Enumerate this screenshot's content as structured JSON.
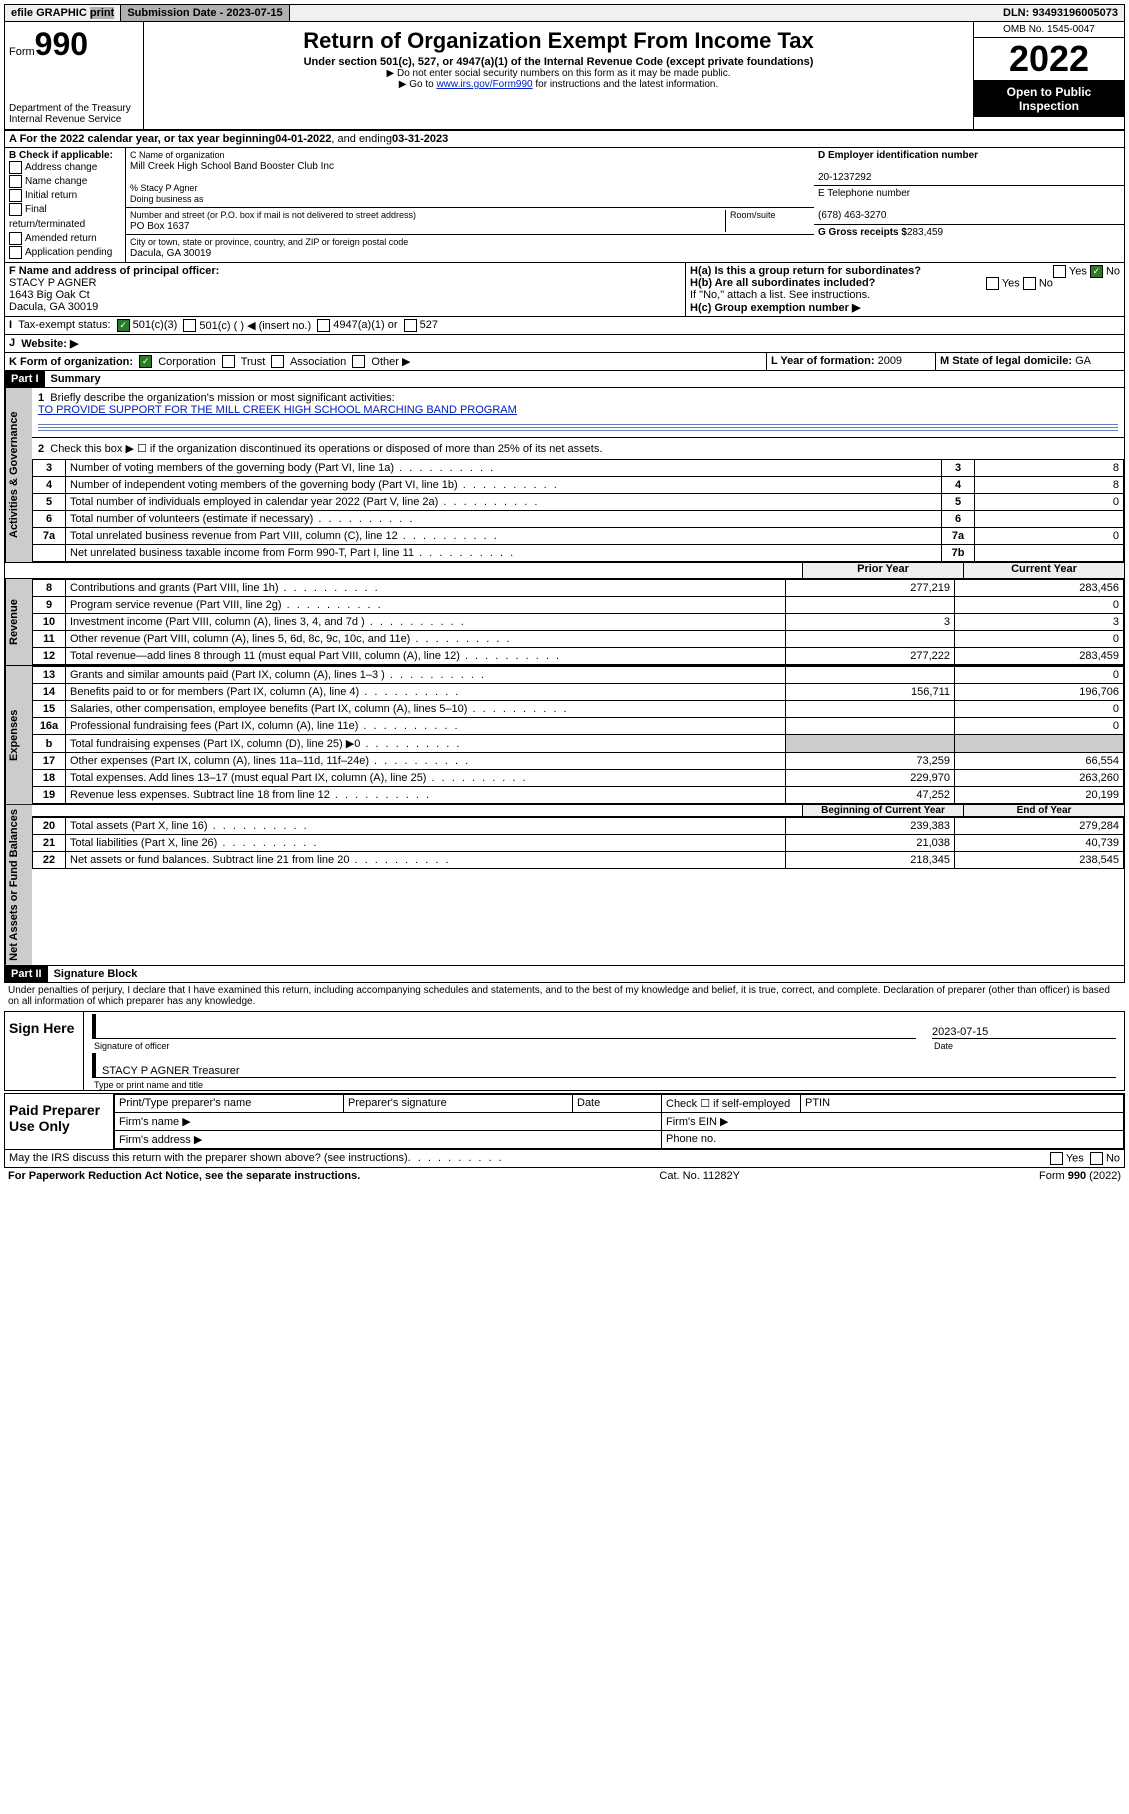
{
  "topbar": {
    "efile": "efile GRAPHIC",
    "print": "print",
    "sub_label": "Submission Date -",
    "sub_date": "2023-07-15",
    "dln_label": "DLN:",
    "dln": "93493196005073"
  },
  "header": {
    "form_prefix": "Form",
    "form_no": "990",
    "dept": "Department of the Treasury",
    "irs": "Internal Revenue Service",
    "title": "Return of Organization Exempt From Income Tax",
    "subtitle": "Under section 501(c), 527, or 4947(a)(1) of the Internal Revenue Code (except private foundations)",
    "note1": "▶ Do not enter social security numbers on this form as it may be made public.",
    "note2_pre": "▶ Go to ",
    "note2_link": "www.irs.gov/Form990",
    "note2_post": " for instructions and the latest information.",
    "omb": "OMB No. 1545-0047",
    "year": "2022",
    "open": "Open to Public Inspection"
  },
  "period": {
    "line": "A For the 2022 calendar year, or tax year beginning ",
    "start": "04-01-2022",
    "mid": " , and ending ",
    "end": "03-31-2023"
  },
  "secB": {
    "hdr": "B Check if applicable:",
    "opts": [
      "Address change",
      "Name change",
      "Initial return",
      "Final return/terminated",
      "Amended return",
      "Application pending"
    ]
  },
  "secC": {
    "name_label": "C Name of organization",
    "name": "Mill Creek High School Band Booster Club Inc",
    "care_label": "% Stacy P Agner",
    "dba_label": "Doing business as",
    "addr_label": "Number and street (or P.O. box if mail is not delivered to street address)",
    "room_label": "Room/suite",
    "addr": "PO Box 1637",
    "city_label": "City or town, state or province, country, and ZIP or foreign postal code",
    "city": "Dacula, GA  30019"
  },
  "secD": {
    "ein_label": "D Employer identification number",
    "ein": "20-1237292",
    "phone_label": "E Telephone number",
    "phone": "(678) 463-3270",
    "gross_label": "G Gross receipts $",
    "gross": "283,459"
  },
  "secF": {
    "label": "F Name and address of principal officer:",
    "name": "STACY P AGNER",
    "addr1": "1643 Big Oak Ct",
    "addr2": "Dacula, GA  30019"
  },
  "secH": {
    "a": "H(a)  Is this a group return for subordinates?",
    "b": "H(b)  Are all subordinates included?",
    "note": "If \"No,\" attach a list. See instructions.",
    "c": "H(c)  Group exemption number ▶",
    "yes": "Yes",
    "no": "No"
  },
  "secI": {
    "label": "Tax-exempt status:",
    "opts": [
      "501(c)(3)",
      "501(c) ( ) ◀ (insert no.)",
      "4947(a)(1) or",
      "527"
    ]
  },
  "secJ": {
    "label": "Website: ▶"
  },
  "secK": {
    "label": "K Form of organization:",
    "opts": [
      "Corporation",
      "Trust",
      "Association",
      "Other ▶"
    ]
  },
  "secL": {
    "label": "L Year of formation:",
    "val": "2009"
  },
  "secM": {
    "label": "M State of legal domicile:",
    "val": "GA"
  },
  "part1": {
    "hdr": "Part I",
    "title": "Summary",
    "l1_label": "Briefly describe the organization's mission or most significant activities:",
    "l1_text": "TO PROVIDE SUPPORT FOR THE MILL CREEK HIGH SCHOOL MARCHING BAND PROGRAM",
    "l2": "Check this box ▶ ☐ if the organization discontinued its operations or disposed of more than 25% of its net assets.",
    "rows_gov": [
      {
        "n": "3",
        "t": "Number of voting members of the governing body (Part VI, line 1a)",
        "r": "3",
        "v": "8"
      },
      {
        "n": "4",
        "t": "Number of independent voting members of the governing body (Part VI, line 1b)",
        "r": "4",
        "v": "8"
      },
      {
        "n": "5",
        "t": "Total number of individuals employed in calendar year 2022 (Part V, line 2a)",
        "r": "5",
        "v": "0"
      },
      {
        "n": "6",
        "t": "Total number of volunteers (estimate if necessary)",
        "r": "6",
        "v": ""
      },
      {
        "n": "7a",
        "t": "Total unrelated business revenue from Part VIII, column (C), line 12",
        "r": "7a",
        "v": "0"
      },
      {
        "n": "",
        "t": "Net unrelated business taxable income from Form 990-T, Part I, line 11",
        "r": "7b",
        "v": ""
      }
    ],
    "col_prior": "Prior Year",
    "col_curr": "Current Year",
    "rows_rev": [
      {
        "n": "8",
        "t": "Contributions and grants (Part VIII, line 1h)",
        "p": "277,219",
        "c": "283,456"
      },
      {
        "n": "9",
        "t": "Program service revenue (Part VIII, line 2g)",
        "p": "",
        "c": "0"
      },
      {
        "n": "10",
        "t": "Investment income (Part VIII, column (A), lines 3, 4, and 7d )",
        "p": "3",
        "c": "3"
      },
      {
        "n": "11",
        "t": "Other revenue (Part VIII, column (A), lines 5, 6d, 8c, 9c, 10c, and 11e)",
        "p": "",
        "c": "0"
      },
      {
        "n": "12",
        "t": "Total revenue—add lines 8 through 11 (must equal Part VIII, column (A), line 12)",
        "p": "277,222",
        "c": "283,459"
      }
    ],
    "rows_exp": [
      {
        "n": "13",
        "t": "Grants and similar amounts paid (Part IX, column (A), lines 1–3 )",
        "p": "",
        "c": "0"
      },
      {
        "n": "14",
        "t": "Benefits paid to or for members (Part IX, column (A), line 4)",
        "p": "156,711",
        "c": "196,706"
      },
      {
        "n": "15",
        "t": "Salaries, other compensation, employee benefits (Part IX, column (A), lines 5–10)",
        "p": "",
        "c": "0"
      },
      {
        "n": "16a",
        "t": "Professional fundraising fees (Part IX, column (A), line 11e)",
        "p": "",
        "c": "0"
      },
      {
        "n": "b",
        "t": "Total fundraising expenses (Part IX, column (D), line 25) ▶0",
        "p": "shade",
        "c": "shade"
      },
      {
        "n": "17",
        "t": "Other expenses (Part IX, column (A), lines 11a–11d, 11f–24e)",
        "p": "73,259",
        "c": "66,554"
      },
      {
        "n": "18",
        "t": "Total expenses. Add lines 13–17 (must equal Part IX, column (A), line 25)",
        "p": "229,970",
        "c": "263,260"
      },
      {
        "n": "19",
        "t": "Revenue less expenses. Subtract line 18 from line 12",
        "p": "47,252",
        "c": "20,199"
      }
    ],
    "col_beg": "Beginning of Current Year",
    "col_end": "End of Year",
    "rows_na": [
      {
        "n": "20",
        "t": "Total assets (Part X, line 16)",
        "p": "239,383",
        "c": "279,284"
      },
      {
        "n": "21",
        "t": "Total liabilities (Part X, line 26)",
        "p": "21,038",
        "c": "40,739"
      },
      {
        "n": "22",
        "t": "Net assets or fund balances. Subtract line 21 from line 20",
        "p": "218,345",
        "c": "238,545"
      }
    ]
  },
  "part2": {
    "hdr": "Part II",
    "title": "Signature Block",
    "decl": "Under penalties of perjury, I declare that I have examined this return, including accompanying schedules and statements, and to the best of my knowledge and belief, it is true, correct, and complete. Declaration of preparer (other than officer) is based on all information of which preparer has any knowledge."
  },
  "sign": {
    "here": "Sign Here",
    "sig_label": "Signature of officer",
    "date_label": "Date",
    "date": "2023-07-15",
    "name": "STACY P AGNER  Treasurer",
    "name_label": "Type or print name and title"
  },
  "paid": {
    "hdr": "Paid Preparer Use Only",
    "c1": "Print/Type preparer's name",
    "c2": "Preparer's signature",
    "c3": "Date",
    "c4": "Check ☐ if self-employed",
    "c5": "PTIN",
    "firm_name": "Firm's name  ▶",
    "firm_ein": "Firm's EIN ▶",
    "firm_addr": "Firm's address ▶",
    "phone": "Phone no."
  },
  "footer": {
    "discuss": "May the IRS discuss this return with the preparer shown above? (see instructions)",
    "pra": "For Paperwork Reduction Act Notice, see the separate instructions.",
    "cat": "Cat. No. 11282Y",
    "form": "Form 990 (2022)",
    "yes": "Yes",
    "no": "No"
  },
  "tabs": {
    "gov": "Activities & Governance",
    "rev": "Revenue",
    "exp": "Expenses",
    "na": "Net Assets or Fund Balances"
  }
}
